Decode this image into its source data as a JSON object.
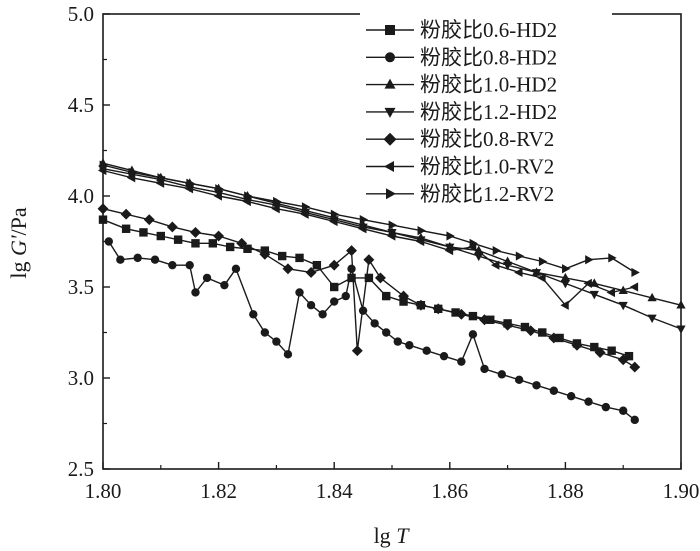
{
  "chart_data": {
    "type": "scatter",
    "xlabel_main": "lg ",
    "xlabel_var": "T",
    "ylabel_main": "lg ",
    "ylabel_var": "G'",
    "ylabel_unit": "/Pa",
    "xlim": [
      1.8,
      1.9
    ],
    "ylim": [
      2.5,
      5.0
    ],
    "xticks": [
      "1.80",
      "1.82",
      "1.84",
      "1.86",
      "1.88",
      "1.90"
    ],
    "yticks": [
      "2.5",
      "3.0",
      "3.5",
      "4.0",
      "4.5",
      "5.0"
    ],
    "legend_position": "top-right",
    "series": [
      {
        "name": "粉胶比0.6-HD2",
        "marker": "square",
        "x": [
          1.8,
          1.804,
          1.807,
          1.81,
          1.813,
          1.816,
          1.819,
          1.822,
          1.825,
          1.828,
          1.831,
          1.834,
          1.837,
          1.84,
          1.843,
          1.846,
          1.849,
          1.852,
          1.855,
          1.858,
          1.861,
          1.864,
          1.867,
          1.87,
          1.873,
          1.876,
          1.879,
          1.882,
          1.885,
          1.888,
          1.891
        ],
        "y": [
          3.87,
          3.82,
          3.8,
          3.78,
          3.76,
          3.74,
          3.74,
          3.72,
          3.71,
          3.7,
          3.67,
          3.66,
          3.62,
          3.5,
          3.55,
          3.55,
          3.45,
          3.42,
          3.4,
          3.38,
          3.36,
          3.34,
          3.32,
          3.3,
          3.28,
          3.25,
          3.22,
          3.19,
          3.17,
          3.15,
          3.12
        ]
      },
      {
        "name": "粉胶比0.8-HD2",
        "marker": "circle",
        "x": [
          1.801,
          1.803,
          1.806,
          1.809,
          1.812,
          1.815,
          1.816,
          1.818,
          1.821,
          1.823,
          1.826,
          1.828,
          1.83,
          1.832,
          1.834,
          1.836,
          1.838,
          1.84,
          1.842,
          1.843,
          1.845,
          1.847,
          1.849,
          1.851,
          1.853,
          1.856,
          1.859,
          1.862,
          1.864,
          1.866,
          1.869,
          1.872,
          1.875,
          1.878,
          1.881,
          1.884,
          1.887,
          1.89,
          1.892
        ],
        "y": [
          3.75,
          3.65,
          3.66,
          3.65,
          3.62,
          3.62,
          3.47,
          3.55,
          3.51,
          3.6,
          3.35,
          3.25,
          3.2,
          3.13,
          3.47,
          3.4,
          3.35,
          3.42,
          3.45,
          3.6,
          3.37,
          3.3,
          3.25,
          3.2,
          3.18,
          3.15,
          3.12,
          3.09,
          3.24,
          3.05,
          3.02,
          2.99,
          2.96,
          2.93,
          2.9,
          2.87,
          2.84,
          2.82,
          2.77
        ]
      },
      {
        "name": "粉胶比1.0-HD2",
        "marker": "triangle-up",
        "x": [
          1.8,
          1.805,
          1.81,
          1.815,
          1.82,
          1.825,
          1.83,
          1.835,
          1.84,
          1.845,
          1.85,
          1.855,
          1.86,
          1.865,
          1.87,
          1.875,
          1.88,
          1.885,
          1.89,
          1.895,
          1.9
        ],
        "y": [
          4.18,
          4.14,
          4.1,
          4.07,
          4.04,
          4.0,
          3.96,
          3.92,
          3.88,
          3.84,
          3.8,
          3.77,
          3.72,
          3.7,
          3.64,
          3.58,
          3.55,
          3.52,
          3.48,
          3.44,
          3.4
        ]
      },
      {
        "name": "粉胶比1.2-HD2",
        "marker": "triangle-down",
        "x": [
          1.8,
          1.805,
          1.81,
          1.815,
          1.82,
          1.825,
          1.83,
          1.835,
          1.84,
          1.845,
          1.85,
          1.855,
          1.86,
          1.865,
          1.87,
          1.875,
          1.88,
          1.885,
          1.89,
          1.895,
          1.9
        ],
        "y": [
          4.15,
          4.12,
          4.09,
          4.05,
          4.02,
          3.98,
          3.95,
          3.91,
          3.87,
          3.83,
          3.8,
          3.76,
          3.72,
          3.67,
          3.62,
          3.58,
          3.52,
          3.46,
          3.4,
          3.33,
          3.27
        ]
      },
      {
        "name": "粉胶比0.8-RV2",
        "marker": "diamond",
        "x": [
          1.8,
          1.804,
          1.808,
          1.812,
          1.816,
          1.82,
          1.824,
          1.828,
          1.832,
          1.836,
          1.84,
          1.843,
          1.844,
          1.846,
          1.848,
          1.852,
          1.855,
          1.858,
          1.862,
          1.866,
          1.87,
          1.874,
          1.878,
          1.882,
          1.886,
          1.89,
          1.892
        ],
        "y": [
          3.93,
          3.9,
          3.87,
          3.83,
          3.8,
          3.78,
          3.74,
          3.68,
          3.6,
          3.58,
          3.62,
          3.7,
          3.15,
          3.65,
          3.55,
          3.45,
          3.4,
          3.38,
          3.35,
          3.32,
          3.29,
          3.26,
          3.22,
          3.18,
          3.14,
          3.1,
          3.06
        ]
      },
      {
        "name": "粉胶比1.0-RV2",
        "marker": "triangle-left",
        "x": [
          1.8,
          1.805,
          1.81,
          1.815,
          1.82,
          1.825,
          1.83,
          1.835,
          1.84,
          1.845,
          1.85,
          1.855,
          1.86,
          1.864,
          1.868,
          1.872,
          1.876,
          1.88,
          1.884,
          1.888,
          1.892
        ],
        "y": [
          4.14,
          4.1,
          4.07,
          4.04,
          4.0,
          3.97,
          3.93,
          3.9,
          3.86,
          3.82,
          3.78,
          3.75,
          3.7,
          3.72,
          3.62,
          3.58,
          3.55,
          3.4,
          3.52,
          3.47,
          3.5
        ]
      },
      {
        "name": "粉胶比1.2-RV2",
        "marker": "triangle-right",
        "x": [
          1.8,
          1.805,
          1.81,
          1.815,
          1.82,
          1.825,
          1.83,
          1.835,
          1.84,
          1.845,
          1.85,
          1.855,
          1.86,
          1.864,
          1.868,
          1.872,
          1.876,
          1.88,
          1.884,
          1.888,
          1.892
        ],
        "y": [
          4.17,
          4.13,
          4.1,
          4.07,
          4.04,
          4.0,
          3.97,
          3.94,
          3.9,
          3.87,
          3.84,
          3.81,
          3.78,
          3.74,
          3.7,
          3.67,
          3.64,
          3.6,
          3.65,
          3.66,
          3.58
        ]
      }
    ]
  }
}
